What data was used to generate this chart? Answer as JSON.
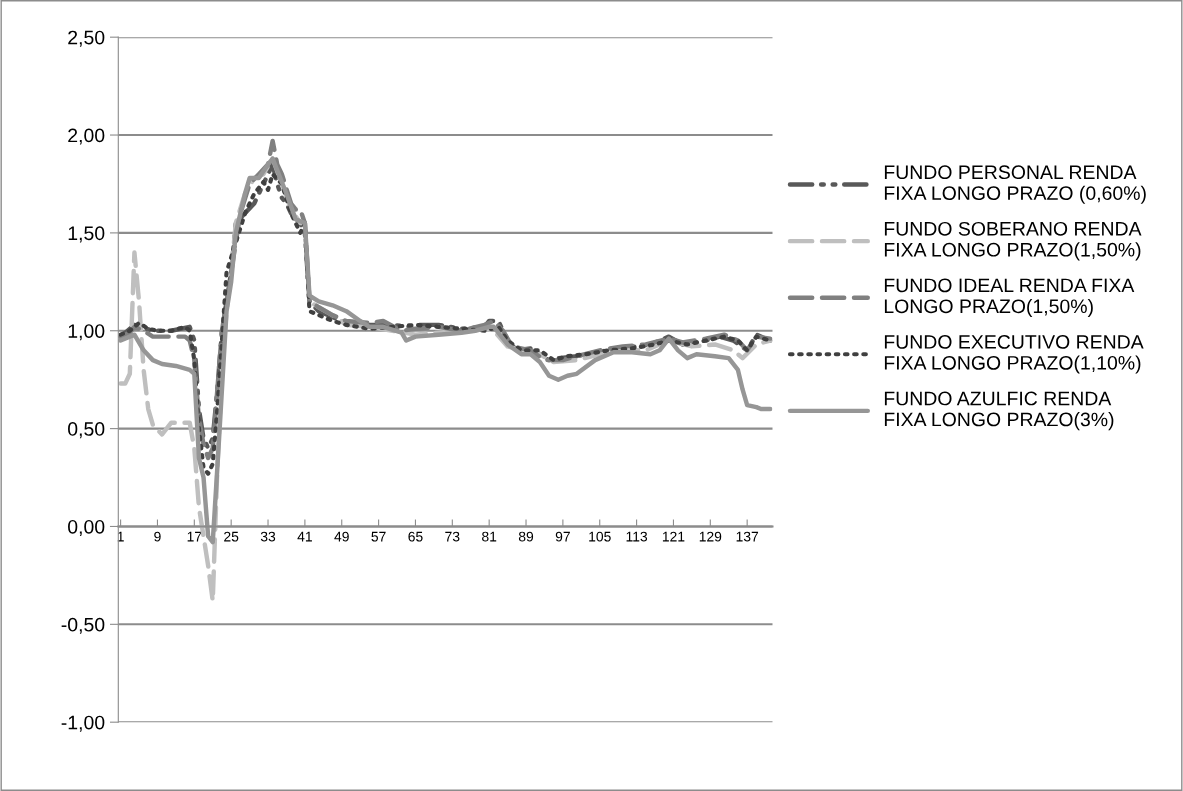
{
  "chart_data": {
    "type": "line",
    "xlim": [
      0.5,
      142.5
    ],
    "xticks": [
      1,
      9,
      17,
      25,
      33,
      41,
      49,
      57,
      65,
      73,
      81,
      89,
      97,
      105,
      113,
      121,
      129,
      137
    ],
    "ylim": [
      -1.0,
      2.5
    ],
    "yticks": [
      {
        "value": -1.0,
        "label": "-1,00"
      },
      {
        "value": -0.5,
        "label": "-0,50"
      },
      {
        "value": 0.0,
        "label": "0,00"
      },
      {
        "value": 0.5,
        "label": "0,50"
      },
      {
        "value": 1.0,
        "label": "1,00"
      },
      {
        "value": 1.5,
        "label": "1,50"
      },
      {
        "value": 2.0,
        "label": "2,00"
      },
      {
        "value": 2.5,
        "label": "2,50"
      }
    ],
    "grid": "y",
    "legend": "right",
    "series": [
      {
        "name": "FUNDO PERSONAL RENDA\nFIXA LONGO PRAZO (0,60%)",
        "color": "#595959",
        "line_style": "dashdot",
        "x": [
          1,
          4,
          8,
          12,
          16,
          17,
          18,
          19,
          20,
          21,
          22,
          23,
          25,
          26,
          28,
          30,
          32,
          34,
          35,
          36,
          37,
          38,
          40,
          41,
          42,
          44,
          47,
          50,
          55,
          60,
          64,
          66,
          70,
          75,
          80,
          81,
          83,
          85,
          87,
          90,
          92,
          94,
          96,
          100,
          104,
          110,
          116,
          120,
          123,
          128,
          131,
          134,
          137,
          139,
          142
        ],
        "values": [
          0.97,
          1.03,
          1.0,
          1.0,
          1.02,
          0.95,
          0.6,
          0.45,
          0.4,
          0.45,
          0.7,
          1.0,
          1.3,
          1.55,
          1.6,
          1.65,
          1.75,
          1.85,
          1.75,
          1.68,
          1.65,
          1.6,
          1.55,
          1.5,
          1.15,
          1.1,
          1.07,
          1.04,
          1.03,
          1.03,
          1.02,
          1.03,
          1.03,
          1.01,
          1.02,
          1.05,
          1.05,
          0.95,
          0.9,
          0.91,
          0.88,
          0.85,
          0.86,
          0.87,
          0.89,
          0.91,
          0.93,
          0.97,
          0.93,
          0.95,
          0.97,
          0.95,
          0.9,
          0.98,
          0.95
        ]
      },
      {
        "name": "FUNDO SOBERANO RENDA\nFIXA LONGO PRAZO(1,50%)",
        "color": "#bfbfbf",
        "line_style": "dashed",
        "x": [
          1,
          2,
          3,
          4,
          5,
          6,
          7,
          8,
          10,
          12,
          14,
          16,
          17,
          18,
          19,
          20,
          21,
          22,
          23,
          24,
          25,
          26,
          28,
          30,
          32,
          34,
          36,
          38,
          40,
          41,
          42,
          44,
          47,
          50,
          55,
          60,
          65,
          70,
          75,
          80,
          82,
          85,
          88,
          92,
          95,
          100,
          105,
          110,
          115,
          120,
          125,
          130,
          134,
          136,
          139,
          142
        ],
        "values": [
          0.73,
          0.73,
          0.78,
          1.4,
          1.15,
          0.8,
          0.6,
          0.52,
          0.47,
          0.53,
          0.53,
          0.53,
          0.4,
          0.1,
          -0.05,
          -0.2,
          -0.38,
          0.3,
          0.8,
          1.1,
          1.3,
          1.55,
          1.7,
          1.78,
          1.8,
          1.88,
          1.75,
          1.62,
          1.55,
          1.55,
          1.15,
          1.12,
          1.08,
          1.03,
          1.02,
          1.0,
          0.98,
          0.99,
          1.0,
          1.01,
          1.0,
          0.92,
          0.9,
          0.88,
          0.84,
          0.85,
          0.88,
          0.9,
          0.9,
          0.95,
          0.92,
          0.93,
          0.9,
          0.86,
          0.93,
          0.95
        ]
      },
      {
        "name": "FUNDO IDEAL RENDA FIXA\nLONGO PRAZO(1,50%)",
        "color": "#808080",
        "line_style": "dashed",
        "x": [
          1,
          3,
          4,
          6,
          8,
          12,
          15,
          16,
          17,
          18,
          19,
          20,
          21,
          22,
          23,
          25,
          27,
          29,
          31,
          33,
          34,
          35,
          36,
          38,
          39,
          40,
          41,
          42,
          44,
          47,
          50,
          55,
          58,
          62,
          65,
          70,
          75,
          80,
          82,
          84,
          86,
          90,
          93,
          97,
          100,
          105,
          110,
          115,
          120,
          123,
          128,
          132,
          135,
          137,
          139,
          142
        ],
        "values": [
          0.97,
          0.99,
          1.02,
          1.0,
          0.97,
          0.97,
          0.97,
          0.95,
          0.85,
          0.55,
          0.42,
          0.35,
          0.4,
          0.7,
          1.0,
          1.3,
          1.6,
          1.75,
          1.8,
          1.85,
          1.97,
          1.85,
          1.8,
          1.65,
          1.62,
          1.62,
          1.55,
          1.15,
          1.12,
          1.08,
          1.05,
          1.04,
          1.05,
          1.0,
          1.01,
          1.02,
          1.0,
          1.03,
          1.05,
          1.0,
          0.92,
          0.9,
          0.85,
          0.85,
          0.87,
          0.9,
          0.92,
          0.93,
          0.96,
          0.94,
          0.96,
          0.98,
          0.95,
          0.9,
          0.97,
          0.96
        ]
      },
      {
        "name": "FUNDO EXECUTIVO RENDA\nFIXA LONGO PRAZO(1,10%)",
        "color": "#404040",
        "line_style": "dotted",
        "x": [
          1,
          3,
          5,
          7,
          9,
          12,
          15,
          16,
          17,
          18,
          19,
          20,
          21,
          22,
          23,
          24,
          26,
          28,
          30,
          32,
          33,
          34,
          36,
          38,
          39,
          40,
          41,
          42,
          44,
          47,
          50,
          55,
          60,
          65,
          70,
          75,
          80,
          83,
          85,
          88,
          92,
          95,
          98,
          102,
          107,
          112,
          117,
          120,
          124,
          128,
          132,
          135,
          137,
          139,
          142
        ],
        "values": [
          0.98,
          1.0,
          1.04,
          1.01,
          1.0,
          1.0,
          1.02,
          1.0,
          0.85,
          0.5,
          0.3,
          0.27,
          0.32,
          0.6,
          0.95,
          1.3,
          1.45,
          1.6,
          1.7,
          1.76,
          1.72,
          1.8,
          1.75,
          1.6,
          1.55,
          1.5,
          1.55,
          1.1,
          1.08,
          1.05,
          1.03,
          1.01,
          1.02,
          1.03,
          1.02,
          1.01,
          1.0,
          1.02,
          0.95,
          0.9,
          0.9,
          0.85,
          0.87,
          0.88,
          0.9,
          0.91,
          0.93,
          0.95,
          0.93,
          0.95,
          0.97,
          0.95,
          0.9,
          0.97,
          0.95
        ]
      },
      {
        "name": "FUNDO AZULFIC RENDA\nFIXA LONGO PRAZO(3%)",
        "color": "#969696",
        "line_style": "solid",
        "x": [
          1,
          3,
          4,
          6,
          8,
          10,
          13,
          16,
          17,
          18,
          19,
          20,
          21,
          22,
          23,
          24,
          25,
          26,
          28,
          29,
          31,
          33,
          34,
          35,
          37,
          39,
          41,
          42,
          44,
          47,
          50,
          53,
          55,
          58,
          62,
          63,
          65,
          70,
          75,
          78,
          81,
          82,
          85,
          88,
          90,
          92,
          94,
          96,
          98,
          100,
          104,
          108,
          112,
          116,
          118,
          120,
          122,
          124,
          126,
          130,
          133,
          135,
          136,
          137,
          139,
          140,
          142
        ],
        "values": [
          0.95,
          0.97,
          0.98,
          0.9,
          0.85,
          0.83,
          0.82,
          0.8,
          0.78,
          0.35,
          0.25,
          -0.05,
          -0.08,
          0.3,
          0.7,
          1.1,
          1.25,
          1.5,
          1.7,
          1.78,
          1.78,
          1.85,
          1.88,
          1.82,
          1.7,
          1.57,
          1.55,
          1.18,
          1.15,
          1.13,
          1.1,
          1.05,
          1.02,
          1.02,
          0.99,
          0.95,
          0.97,
          0.98,
          0.99,
          1.0,
          1.02,
          1.02,
          0.93,
          0.88,
          0.88,
          0.84,
          0.77,
          0.75,
          0.77,
          0.78,
          0.85,
          0.89,
          0.89,
          0.88,
          0.9,
          0.96,
          0.9,
          0.86,
          0.88,
          0.87,
          0.86,
          0.8,
          0.7,
          0.62,
          0.61,
          0.6,
          0.6
        ]
      }
    ]
  }
}
